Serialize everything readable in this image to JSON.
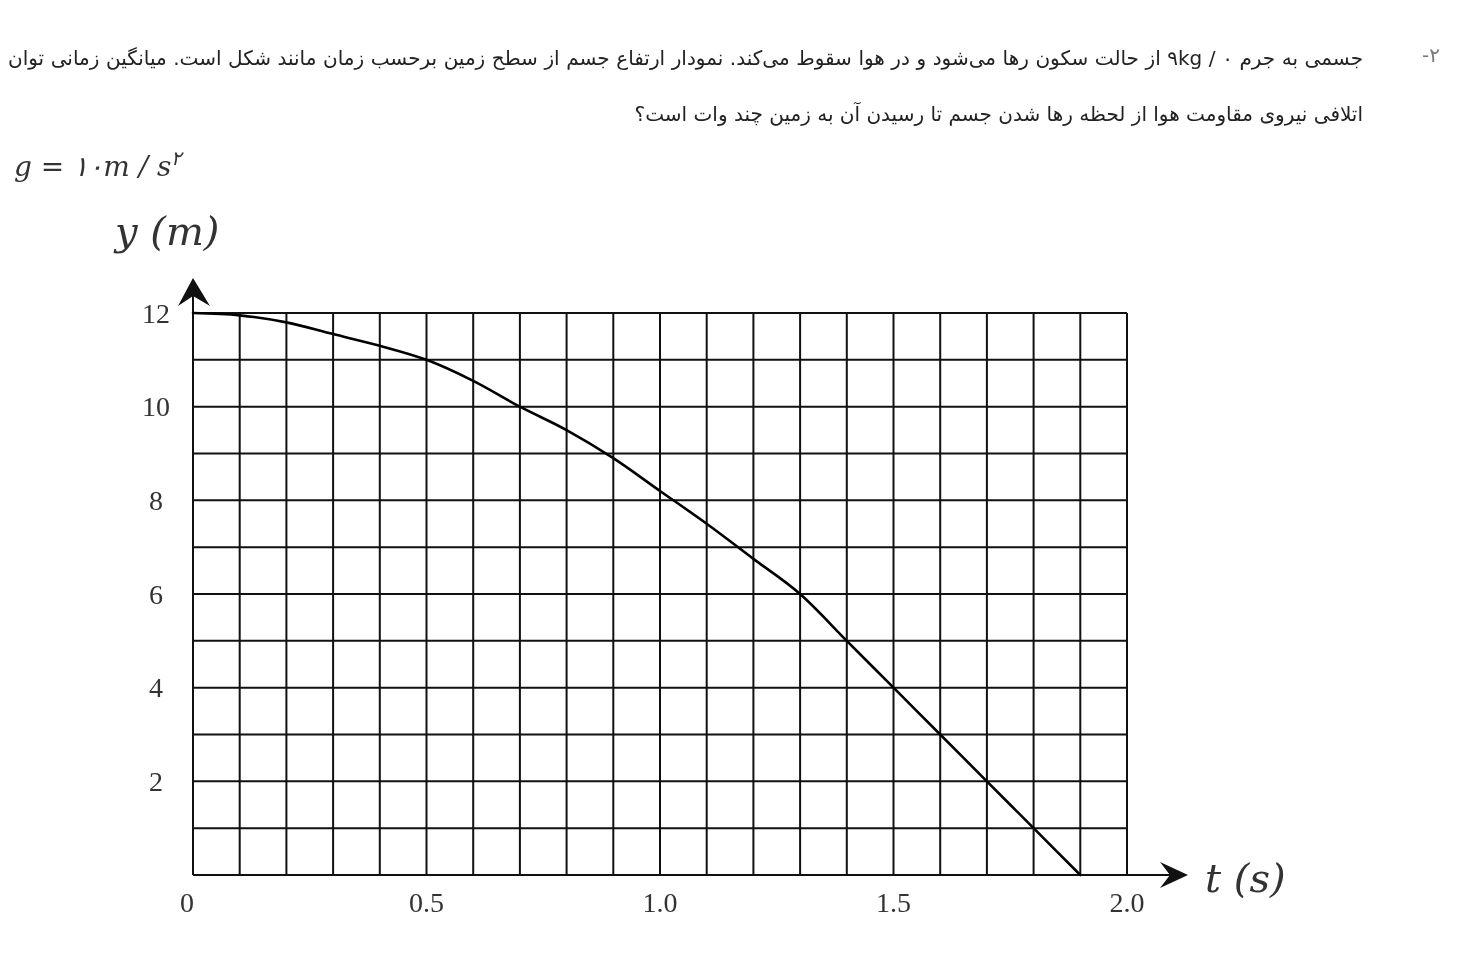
{
  "chart_data": {
    "type": "line",
    "title": "جسمی به جرم ۰ / ۹kg از حالت سکون رها می‌شود و در هوا سقوط می‌کند. نمودار ارتفاع جسم از سطح زمین برحسب زمان مانند شکل است. میانگین زمانی توان اتلافی نیروی مقاومت هوا از لحظه رها شدن جسم تا رسیدن آن به زمین چند وات است؟",
    "annotations": [
      "۲-",
      "g = ۱۰m / s$^{۲}$"
    ],
    "xlabel": "t (s)",
    "ylabel": "y (m)",
    "x": [
      0,
      0.1,
      0.2,
      0.3,
      0.4,
      0.5,
      0.6,
      0.7,
      0.8,
      0.9,
      1.0,
      1.1,
      1.2,
      1.3,
      1.4,
      1.5,
      1.6,
      1.7,
      1.8,
      1.9
    ],
    "series": [
      {
        "color": "#000000",
        "values": [
          12,
          11.95,
          11.8,
          11.55,
          11.3,
          11,
          10.55,
          10,
          9.5,
          8.9,
          8.2,
          7.5,
          6.75,
          6,
          5,
          4,
          3,
          2,
          1,
          0
        ]
      }
    ],
    "xlim": [
      0,
      2.0
    ],
    "ylim": [
      0,
      12
    ],
    "xticks": [
      0,
      {
        "value": 0.1,
        "label": null
      },
      {
        "value": 0.2,
        "label": null
      },
      {
        "value": 0.3,
        "label": null
      },
      {
        "value": 0.4,
        "label": null
      },
      0.5,
      {
        "value": 0.6,
        "label": null
      },
      {
        "value": 0.7,
        "label": null
      },
      {
        "value": 0.8,
        "label": null
      },
      {
        "value": 0.9,
        "label": null
      },
      {
        "value": 1.0,
        "label": "1.0"
      },
      {
        "value": 1.1,
        "label": null
      },
      {
        "value": 1.2,
        "label": null
      },
      {
        "value": 1.3,
        "label": null
      },
      {
        "value": 1.4,
        "label": null
      },
      1.5,
      {
        "value": 1.6,
        "label": null
      },
      {
        "value": 1.7,
        "label": null
      },
      {
        "value": 1.8,
        "label": null
      },
      {
        "value": 1.9,
        "label": null
      },
      {
        "value": 2.0,
        "label": "2.0"
      }
    ],
    "yticks": [
      {
        "value": 1,
        "label": null
      },
      2,
      {
        "value": 3,
        "label": null
      },
      4,
      {
        "value": 5,
        "label": null
      },
      6,
      {
        "value": 7,
        "label": null
      },
      8,
      {
        "value": 9,
        "label": null
      },
      10,
      {
        "value": 11,
        "label": null
      },
      12
    ],
    "grid": true,
    "marker": "none",
    "line_style": "solid"
  }
}
